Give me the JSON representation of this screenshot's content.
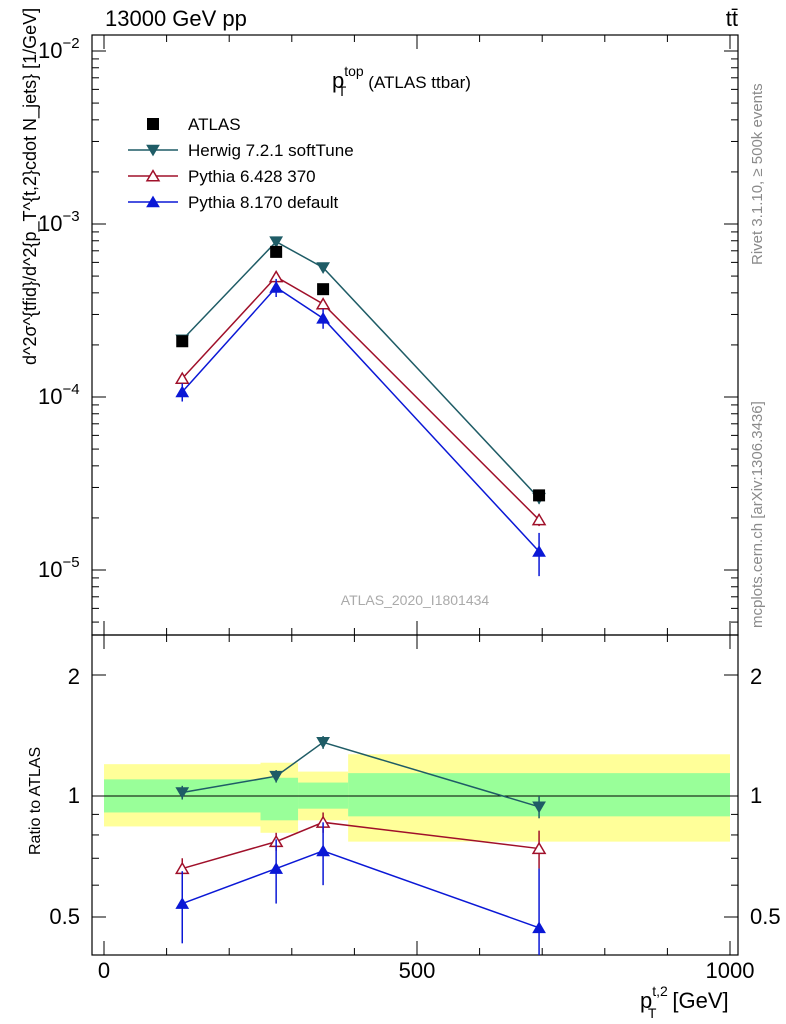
{
  "header": {
    "left": "13000 GeV pp",
    "right": "tt̄"
  },
  "side_labels": {
    "rivet": "Rivet 3.1.10, ≥ 500k events",
    "mcplots": "mcplots.cern.ch [arXiv:1306.3436]"
  },
  "main_plot": {
    "title_main": "p",
    "title_sup": "top",
    "title_sub": "T",
    "title_rest": "(ATLAS ttbar)",
    "ylabel": "d^2σ^{tfid}/d^2{p_T^{t,2}cdot N_jets} [1/GeV]",
    "watermark": "ATLAS_2020_I1801434",
    "yticks": [
      {
        "base": "10",
        "exp": "−2"
      },
      {
        "base": "10",
        "exp": "−3"
      },
      {
        "base": "10",
        "exp": "−4"
      },
      {
        "base": "10",
        "exp": "−5"
      }
    ]
  },
  "ratio_plot": {
    "ylabel": "Ratio to ATLAS",
    "yticks": [
      "2",
      "1",
      "0.5"
    ],
    "xticks": [
      "0",
      "500",
      "1000"
    ],
    "xlabel_main": "p",
    "xlabel_sup": "t,2",
    "xlabel_sub": "T",
    "xlabel_unit": "[GeV]"
  },
  "legend": [
    {
      "label": "ATLAS",
      "marker": "square",
      "color": "#000000"
    },
    {
      "label": "Herwig 7.2.1 softTune",
      "marker": "triangle-down",
      "color": "#1f5c66"
    },
    {
      "label": "Pythia 6.428 370",
      "marker": "triangle-open",
      "color": "#a0102a"
    },
    {
      "label": "Pythia 8.170 default",
      "marker": "triangle-up",
      "color": "#0b18d6"
    }
  ],
  "chart_data": {
    "type": "scatter",
    "xscale": "linear",
    "yscale": "log",
    "xlim": [
      -20,
      1000
    ],
    "ylim": [
      4e-06,
      0.012
    ],
    "ratio_ylim": [
      0.4,
      2.4
    ],
    "x": [
      125,
      275,
      350,
      695
    ],
    "data_points": {
      "name": "ATLAS",
      "values": [
        0.00021,
        0.00069,
        0.00042,
        2.7e-05
      ]
    },
    "series": [
      {
        "name": "Herwig 7.2.1 softTune",
        "values": [
          0.000214,
          0.00079,
          0.00056,
          2.6e-05
        ],
        "ratio": [
          1.02,
          1.12,
          1.36,
          0.94
        ],
        "ratio_err": [
          0.04,
          0.04,
          0.05,
          0.06
        ],
        "err_rel": [
          0.03,
          0.03,
          0.03,
          0.07
        ]
      },
      {
        "name": "Pythia 6.428 370",
        "values": [
          0.000128,
          0.000495,
          0.000345,
          1.95e-05
        ],
        "ratio": [
          0.66,
          0.77,
          0.86,
          0.74
        ],
        "ratio_err": [
          0.04,
          0.04,
          0.05,
          0.08
        ],
        "err_rel": [
          0.05,
          0.05,
          0.05,
          0.08
        ]
      },
      {
        "name": "Pythia 8.170 default",
        "values": [
          0.000107,
          0.00043,
          0.000285,
          1.28e-05
        ],
        "ratio": [
          0.54,
          0.66,
          0.73,
          0.47
        ],
        "ratio_err": [
          0.11,
          0.12,
          0.13,
          0.19
        ],
        "err_rel": [
          0.12,
          0.12,
          0.13,
          0.28
        ]
      }
    ],
    "bands": [
      {
        "x0": 0,
        "x1": 250,
        "inner": [
          0.91,
          1.1
        ],
        "outer": [
          0.84,
          1.2
        ]
      },
      {
        "x0": 250,
        "x1": 310,
        "inner": [
          0.87,
          1.11
        ],
        "outer": [
          0.81,
          1.21
        ]
      },
      {
        "x0": 310,
        "x1": 390,
        "inner": [
          0.93,
          1.08
        ],
        "outer": [
          0.87,
          1.15
        ]
      },
      {
        "x0": 390,
        "x1": 1000,
        "inner": [
          0.89,
          1.14
        ],
        "outer": [
          0.77,
          1.27
        ]
      }
    ]
  }
}
